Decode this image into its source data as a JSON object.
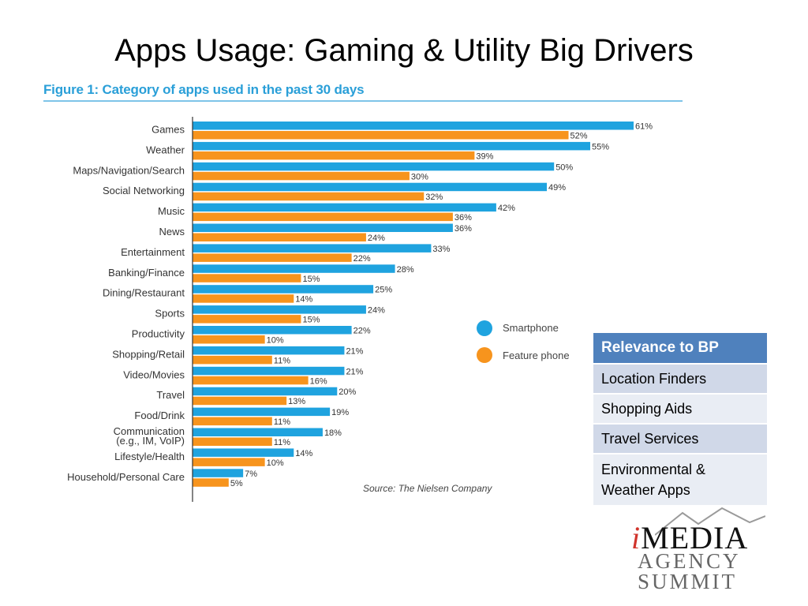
{
  "slide": {
    "title": "Apps Usage: Gaming & Utility Big Drivers"
  },
  "figure": {
    "title": "Figure 1: Category of apps used in the past 30 days",
    "source": "Source: The Nielsen Company"
  },
  "chart_data": {
    "type": "bar",
    "orientation": "horizontal",
    "title": "Figure 1: Category of apps used in the past 30 days",
    "categories": [
      "Games",
      "Weather",
      "Maps/Navigation/Search",
      "Social Networking",
      "Music",
      "News",
      "Entertainment",
      "Banking/Finance",
      "Dining/Restaurant",
      "Sports",
      "Productivity",
      "Shopping/Retail",
      "Video/Movies",
      "Travel",
      "Food/Drink",
      "Communication (e.g., IM, VoIP)",
      "Lifestyle/Health",
      "Household/Personal Care"
    ],
    "category_lines": [
      [
        "Games"
      ],
      [
        "Weather"
      ],
      [
        "Maps/Navigation/Search"
      ],
      [
        "Social Networking"
      ],
      [
        "Music"
      ],
      [
        "News"
      ],
      [
        "Entertainment"
      ],
      [
        "Banking/Finance"
      ],
      [
        "Dining/Restaurant"
      ],
      [
        "Sports"
      ],
      [
        "Productivity"
      ],
      [
        "Shopping/Retail"
      ],
      [
        "Video/Movies"
      ],
      [
        "Travel"
      ],
      [
        "Food/Drink"
      ],
      [
        "Communication",
        "(e.g., IM, VoIP)"
      ],
      [
        "Lifestyle/Health"
      ],
      [
        "Household/Personal Care"
      ]
    ],
    "series": [
      {
        "name": "Smartphone",
        "color": "#1fa3df",
        "values": [
          61,
          55,
          50,
          49,
          42,
          36,
          33,
          28,
          25,
          24,
          22,
          21,
          21,
          20,
          19,
          18,
          14,
          7
        ]
      },
      {
        "name": "Feature phone",
        "color": "#f7941d",
        "values": [
          52,
          39,
          30,
          32,
          36,
          24,
          22,
          15,
          14,
          15,
          10,
          11,
          16,
          13,
          11,
          11,
          10,
          5
        ]
      }
    ],
    "value_suffix": "%",
    "xlim": [
      0,
      61
    ],
    "grid": false,
    "legend_position": "right"
  },
  "relevance_table": {
    "header": "Relevance to BP",
    "rows": [
      "Location Finders",
      "Shopping Aids",
      "Travel Services",
      "Environmental & Weather Apps"
    ]
  },
  "logo": {
    "line1_i": "i",
    "line1_rest": "MEDIA",
    "line2": "AGENCY",
    "line3": "SUMMIT"
  }
}
